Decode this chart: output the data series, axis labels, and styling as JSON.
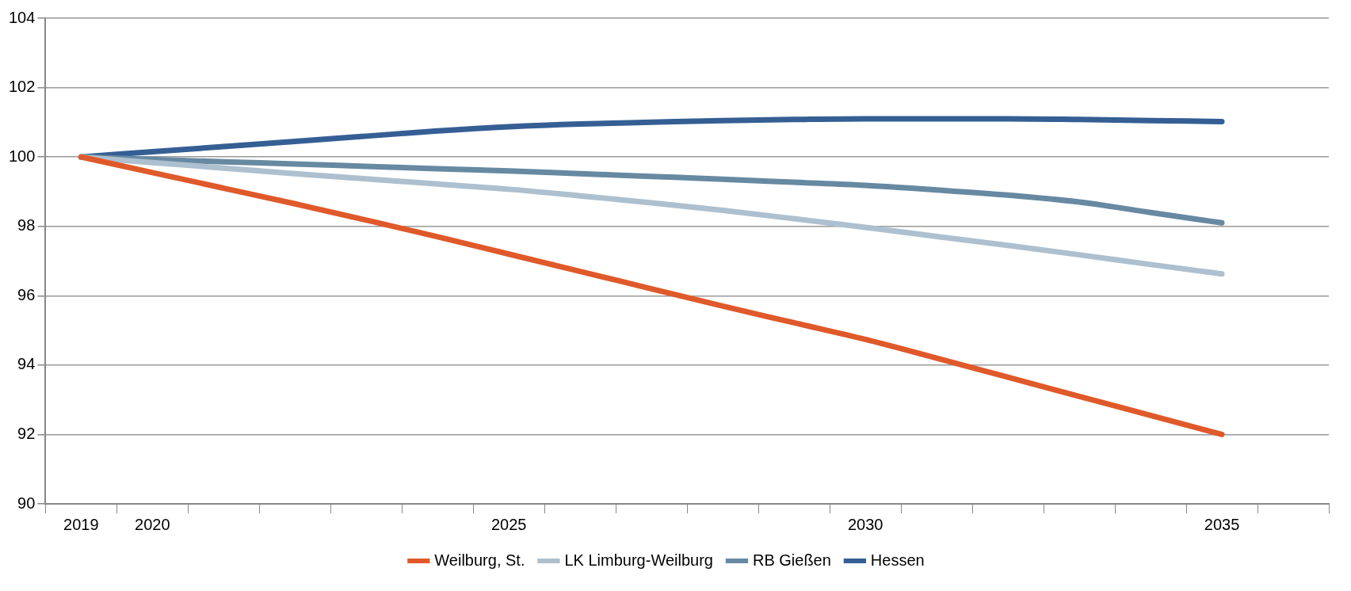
{
  "chart_data": {
    "type": "line",
    "categories": [
      "2019",
      "2020",
      null,
      null,
      null,
      null,
      "2025",
      null,
      null,
      null,
      null,
      "2030",
      null,
      null,
      null,
      null,
      "2035",
      null
    ],
    "ylim": [
      90,
      104
    ],
    "yticks": [
      90,
      92,
      94,
      96,
      98,
      100,
      102,
      104
    ],
    "grid": "y",
    "legend": "bottom",
    "marker": "none",
    "line_style": "solid",
    "series": [
      {
        "name": "Weilburg, St.",
        "color": "#e0592a",
        "values": [
          100,
          99.55,
          99.1,
          98.65,
          98.18,
          97.7,
          97.2,
          96.7,
          96.2,
          95.7,
          95.22,
          94.74,
          94.2,
          93.65,
          93.1,
          92.55,
          92.0,
          null
        ]
      },
      {
        "name": "LK Limburg-Weilburg",
        "color": "#adc0cf",
        "values": [
          100,
          99.84,
          99.68,
          99.52,
          99.37,
          99.22,
          99.07,
          98.88,
          98.68,
          98.46,
          98.22,
          97.97,
          97.71,
          97.45,
          97.18,
          96.9,
          96.63,
          null
        ]
      },
      {
        "name": "RB Gießen",
        "color": "#6789a2",
        "values": [
          100,
          99.93,
          99.86,
          99.8,
          99.73,
          99.66,
          99.6,
          99.52,
          99.44,
          99.36,
          99.27,
          99.18,
          99.05,
          98.9,
          98.7,
          98.4,
          98.1,
          null
        ]
      },
      {
        "name": "Hessen",
        "color": "#355f94",
        "values": [
          100,
          100.15,
          100.3,
          100.45,
          100.6,
          100.75,
          100.87,
          100.95,
          101.0,
          101.05,
          101.08,
          101.1,
          101.1,
          101.1,
          101.08,
          101.05,
          101.02,
          null
        ]
      }
    ]
  }
}
